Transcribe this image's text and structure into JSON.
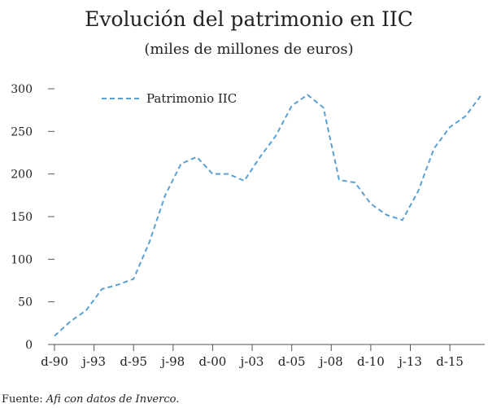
{
  "chart_data": {
    "type": "line",
    "title": "Evolución del patrimonio en IIC",
    "subtitle": "(miles de millones de euros)",
    "categories": [
      "d-90",
      null,
      null,
      null,
      null,
      "j-93",
      null,
      null,
      null,
      null,
      "d-95",
      null,
      null,
      null,
      null,
      "j-98",
      null,
      null,
      null,
      null,
      "d-00",
      null,
      null,
      null,
      null,
      "j-03",
      null,
      null,
      null,
      null,
      "d-05",
      null,
      null,
      null,
      null,
      "j-08",
      null,
      null,
      null,
      null,
      "d-10",
      null,
      null,
      null,
      null,
      "j-13",
      null,
      null,
      null,
      null,
      "d-15",
      null,
      null,
      null,
      null
    ],
    "series": [
      {
        "name": "Patrimonio IIC",
        "color": "#5aa0d2",
        "values": [
          10,
          18.5,
          27,
          33.5,
          40,
          52.5,
          65,
          67.5,
          70,
          73.5,
          77,
          98.5,
          120,
          147.5,
          175,
          193.5,
          212,
          216,
          220,
          210,
          200,
          200,
          200,
          196,
          192,
          206,
          220,
          232.5,
          245,
          262.5,
          280,
          286.5,
          293,
          285.5,
          278,
          235.5,
          193,
          191.5,
          190,
          177.5,
          165,
          158.5,
          152,
          149,
          146,
          163,
          180,
          205,
          230,
          242.5,
          255,
          261.5,
          268,
          280.5,
          293
        ]
      }
    ],
    "ylim": [
      0,
      300
    ],
    "yticks": [
      0,
      50,
      100,
      150,
      200,
      250,
      300
    ],
    "grid": false,
    "legend": "upper left",
    "footer": {
      "label": "Fuente:",
      "text": "Afi con datos de Inverco."
    }
  }
}
